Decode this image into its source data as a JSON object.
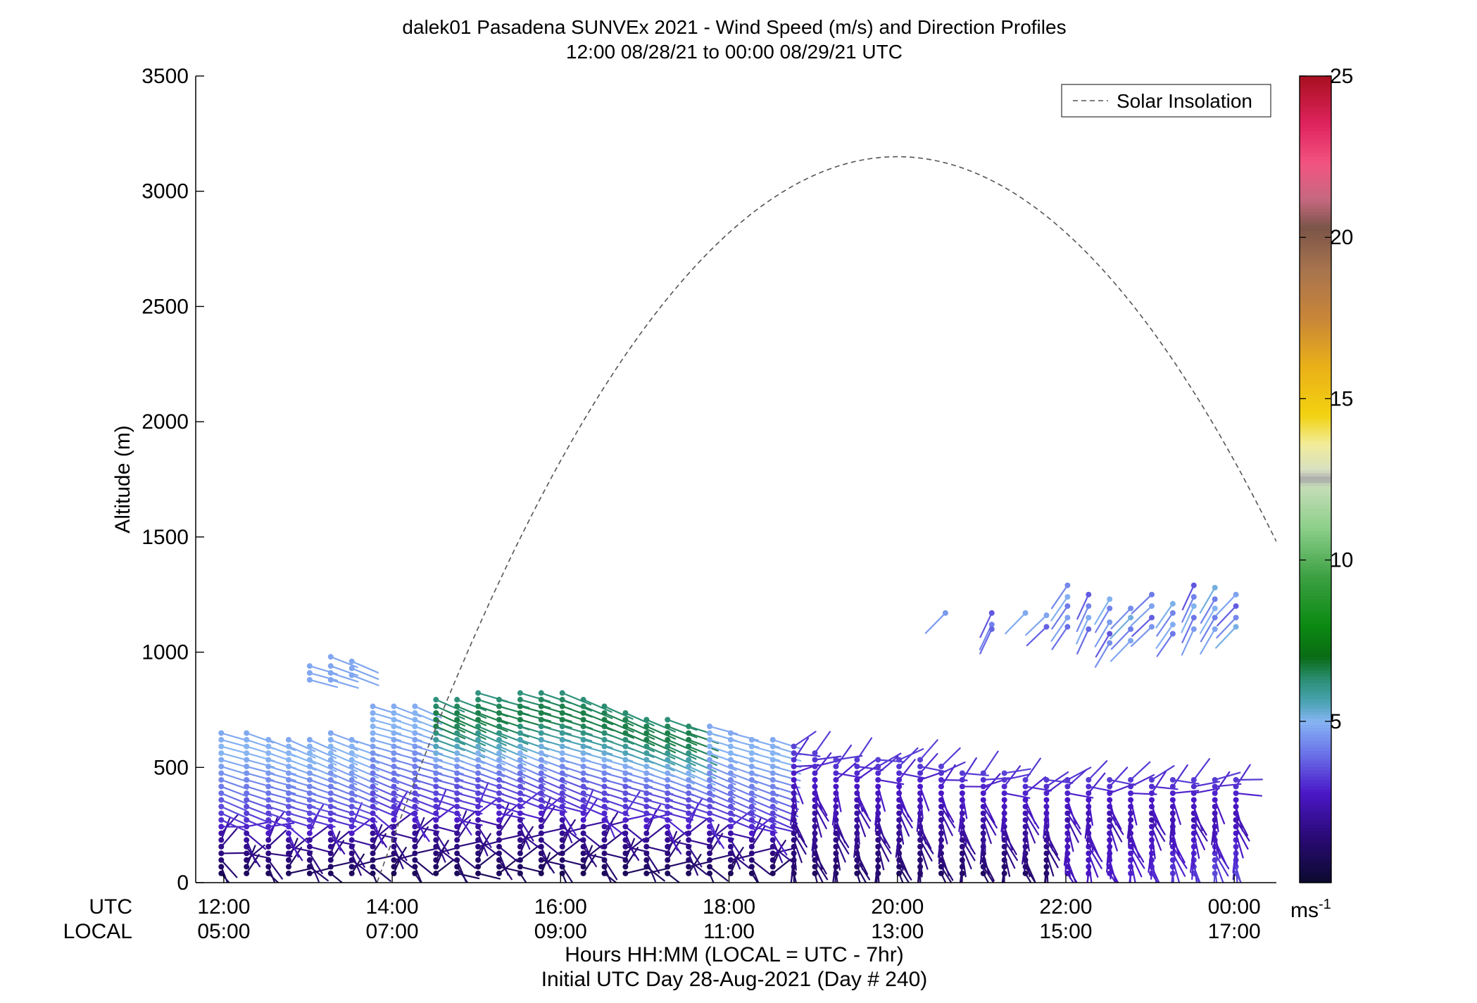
{
  "chart_data": {
    "type": "scatter",
    "title": "dalek01 Pasadena SUNVEx 2021 - Wind Speed (m/s) and Direction Profiles",
    "subtitle": "12:00 08/28/21 to 00:00 08/29/21  UTC",
    "ylabel": "Altitude (m)",
    "xlabel": "Hours HH:MM  (LOCAL = UTC - 7hr)",
    "xlabel2": "Initial UTC Day 28-Aug-2021 (Day # 240)",
    "ylim": [
      0,
      3500
    ],
    "yticks": [
      "0",
      "500",
      "1000",
      "1500",
      "2000",
      "2500",
      "3000",
      "3500"
    ],
    "xlim_utc_hours": [
      11.6667,
      24.5
    ],
    "x_row_labels": {
      "utc": "UTC",
      "local": "LOCAL"
    },
    "xticks": [
      {
        "utc": "12:00",
        "local": "05:00"
      },
      {
        "utc": "14:00",
        "local": "07:00"
      },
      {
        "utc": "16:00",
        "local": "09:00"
      },
      {
        "utc": "18:00",
        "local": "11:00"
      },
      {
        "utc": "20:00",
        "local": "13:00"
      },
      {
        "utc": "22:00",
        "local": "15:00"
      },
      {
        "utc": "00:00",
        "local": "17:00"
      }
    ],
    "legend": {
      "position": "top-right",
      "entries": [
        "Solar Insolation"
      ]
    },
    "grid": false,
    "colorbar": {
      "unit_label": "ms",
      "unit_exponent": "-1",
      "range": [
        0,
        25
      ],
      "ticks": [
        "5",
        "10",
        "15",
        "20",
        "25"
      ],
      "stops": [
        {
          "v": 0.0,
          "c": "#0b0a2e"
        },
        {
          "v": 1.5,
          "c": "#2b0a7a"
        },
        {
          "v": 2.8,
          "c": "#4b18c8"
        },
        {
          "v": 4.0,
          "c": "#6a72e8"
        },
        {
          "v": 5.0,
          "c": "#86b4f2"
        },
        {
          "v": 5.6,
          "c": "#4aa3b4"
        },
        {
          "v": 6.3,
          "c": "#2b8f74"
        },
        {
          "v": 7.0,
          "c": "#0a6b14"
        },
        {
          "v": 8.0,
          "c": "#0b8a12"
        },
        {
          "v": 9.5,
          "c": "#3da043"
        },
        {
          "v": 11.0,
          "c": "#8ccf8a"
        },
        {
          "v": 12.3,
          "c": "#c6dcb8"
        },
        {
          "v": 12.5,
          "c": "#a8a8a8"
        },
        {
          "v": 12.8,
          "c": "#d8e0c2"
        },
        {
          "v": 13.6,
          "c": "#f2ec9a"
        },
        {
          "v": 14.5,
          "c": "#f2d210"
        },
        {
          "v": 16.0,
          "c": "#eab018"
        },
        {
          "v": 17.5,
          "c": "#c88638"
        },
        {
          "v": 19.0,
          "c": "#a8744e"
        },
        {
          "v": 20.3,
          "c": "#7b5548"
        },
        {
          "v": 21.2,
          "c": "#c66880"
        },
        {
          "v": 22.3,
          "c": "#f25480"
        },
        {
          "v": 23.5,
          "c": "#e0245e"
        },
        {
          "v": 25.0,
          "c": "#a81020"
        }
      ]
    },
    "insolation_curve": {
      "style": "dashed",
      "color": "#555555",
      "start_utc_hours": 13.3,
      "peak_utc_hours": 20.0,
      "peak_altitude_m": 3150,
      "end_utc_hours": 24.5,
      "end_altitude_m": 1480
    },
    "profiles": {
      "utc_hours": [
        11.97,
        12.27,
        12.53,
        12.77,
        13.02,
        13.27,
        13.52,
        13.77,
        14.02,
        14.27,
        14.52,
        14.77,
        15.02,
        15.27,
        15.52,
        15.77,
        16.02,
        16.27,
        16.52,
        16.77,
        17.02,
        17.27,
        17.52,
        17.77,
        18.02,
        18.27,
        18.52,
        18.77,
        19.02,
        19.27,
        19.52,
        19.77,
        20.02,
        20.27,
        20.52,
        20.77,
        21.02,
        21.27,
        21.52,
        21.77,
        22.02,
        22.27,
        22.52,
        22.77,
        23.02,
        23.27,
        23.52,
        23.77,
        24.02
      ],
      "top_altitude_m": [
        655,
        655,
        640,
        620,
        620,
        650,
        630,
        770,
        780,
        790,
        800,
        810,
        825,
        815,
        830,
        840,
        835,
        810,
        790,
        760,
        730,
        720,
        705,
        680,
        650,
        640,
        625,
        600,
        580,
        555,
        560,
        545,
        540,
        540,
        520,
        500,
        495,
        480,
        470,
        470,
        470,
        470,
        470,
        470,
        470,
        470,
        470,
        470,
        470
      ],
      "aloft_layer": {
        "utc_hours": [
          20.57,
          21.12,
          21.52,
          21.77,
          22.02,
          22.27,
          22.52,
          22.77,
          23.02,
          23.27,
          23.52,
          23.77,
          24.02
        ],
        "altitude_m": [
          [
            1170
          ],
          [
            1170,
            1120,
            1100
          ],
          [
            1170
          ],
          [
            1160,
            1110
          ],
          [
            1290,
            1240,
            1200,
            1150,
            1110
          ],
          [
            1250,
            1200,
            1150,
            1100
          ],
          [
            1230,
            1190,
            1130,
            1080,
            1040
          ],
          [
            1190,
            1150,
            1100,
            1050
          ],
          [
            1250,
            1200,
            1150,
            1110
          ],
          [
            1210,
            1170,
            1120,
            1080
          ],
          [
            1290,
            1240,
            1200,
            1150,
            1100
          ],
          [
            1280,
            1230,
            1190,
            1150,
            1100
          ],
          [
            1250,
            1200,
            1150,
            1110
          ]
        ]
      },
      "elevated_layer": {
        "utc_hours": [
          13.02,
          13.27,
          13.52
        ],
        "altitude_m": [
          [
            940,
            910,
            880
          ],
          [
            980,
            940,
            910,
            880
          ],
          [
            960,
            930,
            900
          ]
        ]
      }
    }
  }
}
